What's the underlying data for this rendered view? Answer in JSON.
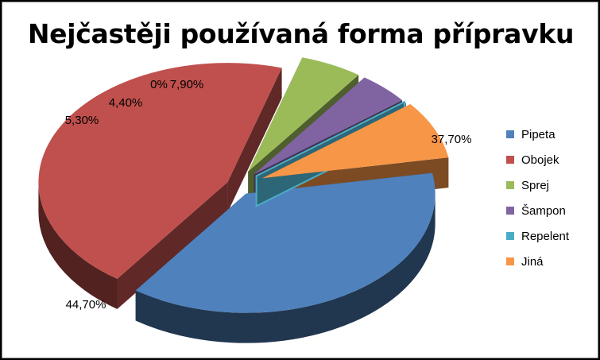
{
  "chart_data": {
    "type": "pie",
    "title": "Nejčastěji používaná forma přípravku",
    "legend_position": "right",
    "categories": [
      "Pipeta",
      "Obojek",
      "Sprej",
      "Šampon",
      "Repelent",
      "Jiná"
    ],
    "values": [
      37.7,
      44.7,
      5.3,
      4.4,
      0,
      7.9
    ],
    "labels": [
      "37,70%",
      "44,70%",
      "5,30%",
      "4,40%",
      "0%",
      "7,90%"
    ],
    "colors": [
      "#4f81bd",
      "#c0504d",
      "#9bbb59",
      "#8064a2",
      "#4bacc6",
      "#f79646"
    ],
    "exploded": true,
    "style": "3d"
  }
}
